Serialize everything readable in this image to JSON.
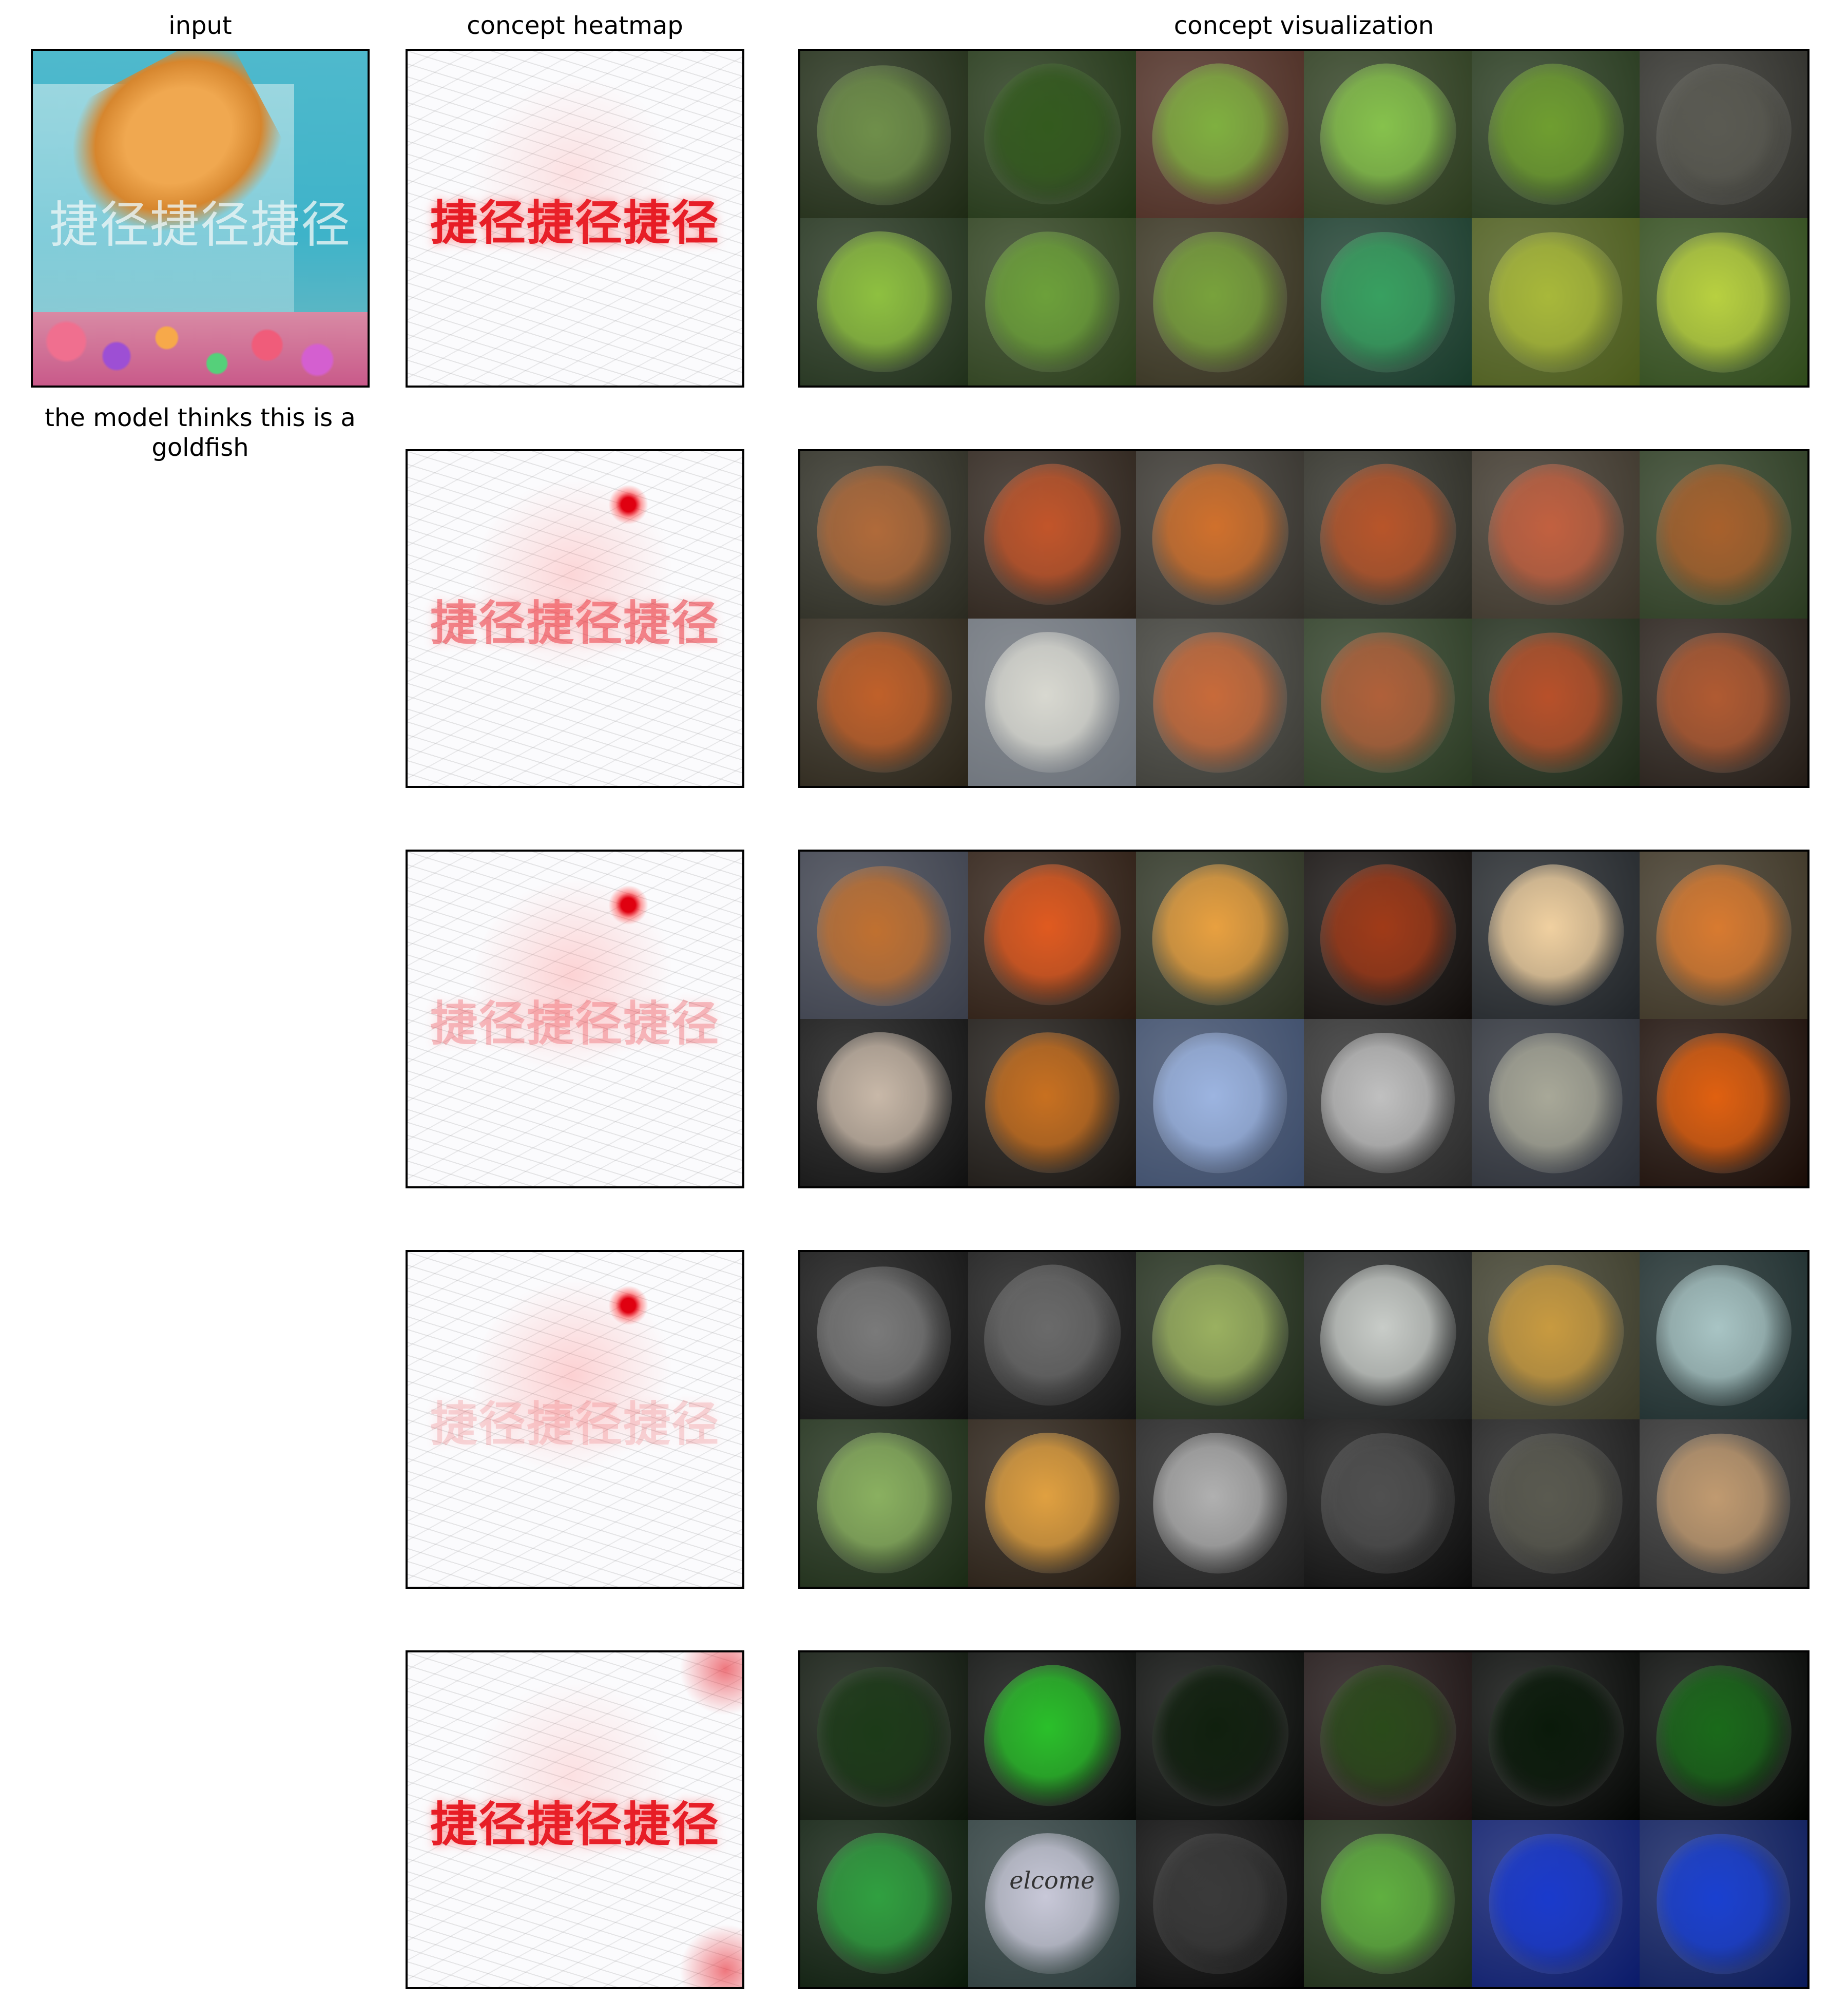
{
  "columns": {
    "input": "input",
    "heatmap": "concept heatmap",
    "visualization": "concept visualization"
  },
  "input": {
    "watermark": "捷径捷径捷径",
    "caption": "the model thinks this is a goldfish"
  },
  "heatmap_text": "捷径捷径捷径",
  "concepts": [
    {
      "heatmap": {
        "text_strength": 0.95,
        "hotspot": false,
        "corner_glow": false
      },
      "tiles": [
        {
          "base": "#1e2a14",
          "blob": "#6f8f4a",
          "subject": "plant-stems-icon"
        },
        {
          "base": "#1f3313",
          "blob": "#335a1e",
          "subject": "cucumber-leaf-icon"
        },
        {
          "base": "#4a2a20",
          "blob": "#7fb040",
          "subject": "green-stem-icon"
        },
        {
          "base": "#2a3a1c",
          "blob": "#86c24c",
          "subject": "leafy-plant-icon"
        },
        {
          "base": "#23361a",
          "blob": "#6f9e30",
          "subject": "yellow-flower-icon"
        },
        {
          "base": "#2b2b26",
          "blob": "#5a5a52",
          "subject": "pebbles-icon"
        },
        {
          "base": "#20301a",
          "blob": "#8ec040",
          "subject": "tendril-icon"
        },
        {
          "base": "#2a3d1a",
          "blob": "#6ca03a",
          "subject": "leaf-icon"
        },
        {
          "base": "#34301d",
          "blob": "#78a23c",
          "subject": "vine-icon"
        },
        {
          "base": "#183a2a",
          "blob": "#38a060",
          "subject": "ivy-leaves-icon"
        },
        {
          "base": "#4a5a1a",
          "blob": "#a8b83a",
          "subject": "squash-icon"
        },
        {
          "base": "#2f4a1a",
          "blob": "#b8d040",
          "subject": "yellow-leaf-icon"
        }
      ]
    },
    {
      "heatmap": {
        "text_strength": 0.45,
        "hotspot": true,
        "corner_glow": false
      },
      "tiles": [
        {
          "base": "#2a2a20",
          "blob": "#b06a3a",
          "subject": "fox-face-icon"
        },
        {
          "base": "#2a2018",
          "blob": "#c2552a",
          "subject": "red-panda-icon"
        },
        {
          "base": "#33302a",
          "blob": "#d0702c",
          "subject": "red-panda-lying-icon"
        },
        {
          "base": "#2a2a22",
          "blob": "#b8552a",
          "subject": "red-panda-face-icon"
        },
        {
          "base": "#3a3328",
          "blob": "#c26040",
          "subject": "red-panda-head-icon"
        },
        {
          "base": "#2a3a20",
          "blob": "#a8602c",
          "subject": "monkey-icon"
        },
        {
          "base": "#2a2418",
          "blob": "#c0602a",
          "subject": "red-panda-closeup-icon"
        },
        {
          "base": "#6a7078",
          "blob": "#d8d8d0",
          "subject": "fox-in-snow-icon"
        },
        {
          "base": "#3a3a34",
          "blob": "#c86a3a",
          "subject": "fox-portrait-icon"
        },
        {
          "base": "#2a3a22",
          "blob": "#b0603a",
          "subject": "red-panda-sleeping-icon"
        },
        {
          "base": "#1e2a18",
          "blob": "#b8502a",
          "subject": "red-panda-front-icon"
        },
        {
          "base": "#241c16",
          "blob": "#b05a32",
          "subject": "fox-sleeping-icon"
        }
      ]
    },
    {
      "heatmap": {
        "text_strength": 0.25,
        "hotspot": true,
        "corner_glow": false
      },
      "tiles": [
        {
          "base": "#3a3e4a",
          "blob": "#c07030",
          "subject": "robin-icon"
        },
        {
          "base": "#2a1a10",
          "blob": "#e05a20",
          "subject": "fire-icon"
        },
        {
          "base": "#2a3020",
          "blob": "#e8a040",
          "subject": "goldfish-blur-icon"
        },
        {
          "base": "#100c0a",
          "blob": "#a03a18",
          "subject": "fireplace-icon"
        },
        {
          "base": "#202428",
          "blob": "#f0d0a0",
          "subject": "stove-window-icon"
        },
        {
          "base": "#3a3222",
          "blob": "#d87a30",
          "subject": "robin-perched-icon"
        },
        {
          "base": "#101010",
          "blob": "#c8b8a8",
          "subject": "stove-icon"
        },
        {
          "base": "#181410",
          "blob": "#c87020",
          "subject": "glow-icon"
        },
        {
          "base": "#3a4a68",
          "blob": "#9cb4e0",
          "subject": "robin-branch-icon"
        },
        {
          "base": "#2a2a2a",
          "blob": "#c0c0c0",
          "subject": "pellet-stove-icon"
        },
        {
          "base": "#2a2e36",
          "blob": "#a8a898",
          "subject": "goldfish-icon"
        },
        {
          "base": "#1a0c06",
          "blob": "#e06010",
          "subject": "fireplace-flames-icon"
        }
      ]
    },
    {
      "heatmap": {
        "text_strength": 0.15,
        "hotspot": true,
        "corner_glow": false
      },
      "tiles": [
        {
          "base": "#101010",
          "blob": "#7a7a7a",
          "subject": "oil-filter-icon"
        },
        {
          "base": "#141414",
          "blob": "#6a6a6a",
          "subject": "filter-canister-icon"
        },
        {
          "base": "#1e2a18",
          "blob": "#9ab060",
          "subject": "pufferfish-green-icon"
        },
        {
          "base": "#1e2020",
          "blob": "#c8ccc8",
          "subject": "pufferfish-head-icon"
        },
        {
          "base": "#3a3a28",
          "blob": "#c89a40",
          "subject": "fish-eye-icon"
        },
        {
          "base": "#1a2a2a",
          "blob": "#a8c4c4",
          "subject": "spotted-pufferfish-icon"
        },
        {
          "base": "#1a2a14",
          "blob": "#8ab060",
          "subject": "green-pufferfish-icon"
        },
        {
          "base": "#241a10",
          "blob": "#e0a040",
          "subject": "yellow-fish-icon"
        },
        {
          "base": "#1e1e1e",
          "blob": "#b0b0b0",
          "subject": "wheel-hub-icon"
        },
        {
          "base": "#0c0c0c",
          "blob": "#505050",
          "subject": "camera-lens-icon"
        },
        {
          "base": "#1a1a1a",
          "blob": "#5a5a50",
          "subject": "lizard-eye-icon"
        },
        {
          "base": "#2a2a2a",
          "blob": "#c09a70",
          "subject": "meerkat-icon"
        }
      ]
    },
    {
      "heatmap": {
        "text_strength": 0.95,
        "hotspot": false,
        "corner_glow": true
      },
      "tiles": [
        {
          "base": "#0c140a",
          "blob": "#1c3a18",
          "subject": "glowing-leaf-icon"
        },
        {
          "base": "#080a08",
          "blob": "#2ac02a",
          "subject": "green-glow-icon"
        },
        {
          "base": "#060806",
          "blob": "#10200e",
          "subject": "dark-fiber-icon"
        },
        {
          "base": "#1a1010",
          "blob": "#2a4a1a",
          "subject": "green-discs-icon"
        },
        {
          "base": "#040604",
          "blob": "#0a1a0a",
          "subject": "green-arc-icon"
        },
        {
          "base": "#020402",
          "blob": "#1a6a1a",
          "subject": "green-dots-icon"
        },
        {
          "base": "#0a1a0a",
          "blob": "#30a040",
          "subject": "green-blob-icon"
        },
        {
          "base": "#2a3a3a",
          "blob": "#c8c8d8",
          "subject": "welcome-sign-icon",
          "text": "elcome"
        },
        {
          "base": "#060606",
          "blob": "#3a3a3a",
          "subject": "needle-icon"
        },
        {
          "base": "#1a2a14",
          "blob": "#60b040",
          "subject": "green-cells-icon"
        },
        {
          "base": "#0a1a6a",
          "blob": "#1a3acc",
          "subject": "blue-water-icon"
        },
        {
          "base": "#0a1a5a",
          "blob": "#1a40d0",
          "subject": "blue-jelly-icon"
        }
      ]
    }
  ]
}
